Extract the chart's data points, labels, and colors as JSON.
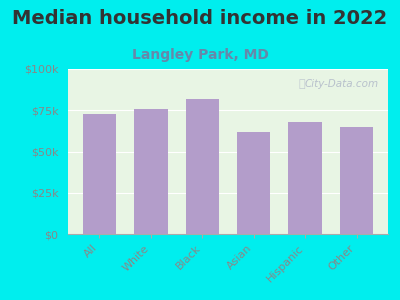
{
  "title": "Median household income in 2022",
  "subtitle": "Langley Park, MD",
  "categories": [
    "All",
    "White",
    "Black",
    "Asian",
    "Hispanic",
    "Other"
  ],
  "values": [
    73000,
    75500,
    82000,
    62000,
    68000,
    65000
  ],
  "bar_color": "#b39dca",
  "background_outer": "#00eeee",
  "background_inner": "#e8f5e4",
  "title_color": "#333333",
  "subtitle_color": "#6688aa",
  "tick_color": "#888888",
  "ylabel_values": [
    0,
    25000,
    50000,
    75000,
    100000
  ],
  "ylabel_labels": [
    "$0",
    "$25k",
    "$50k",
    "$75k",
    "$100k"
  ],
  "ylim": [
    0,
    100000
  ],
  "watermark": "City-Data.com",
  "title_fontsize": 14,
  "subtitle_fontsize": 10
}
